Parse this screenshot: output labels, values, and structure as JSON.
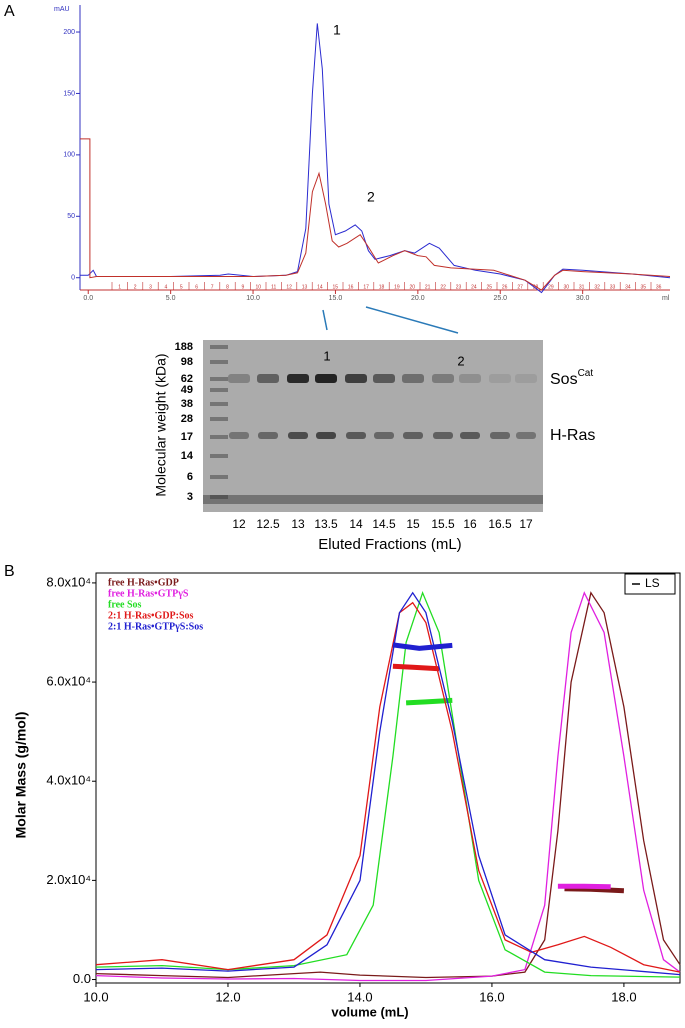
{
  "chart_data": [
    {
      "type": "line",
      "panel": "A",
      "ylabel": "mAU",
      "xunit": "ml",
      "xlim": [
        -0.5,
        35.3
      ],
      "ylim": [
        -10,
        222
      ],
      "xticks": [
        {
          "value": 0,
          "label": "0.0"
        },
        {
          "value": 5,
          "label": "5.0"
        },
        {
          "value": 10,
          "label": "10.0"
        },
        {
          "value": 15,
          "label": "15.0"
        },
        {
          "value": 20,
          "label": "20.0"
        },
        {
          "value": 25,
          "label": "25.0"
        },
        {
          "value": 30,
          "label": "30.0"
        }
      ],
      "yticks": [
        0,
        50,
        100,
        150,
        200
      ],
      "peak_labels": [
        "1",
        "2"
      ],
      "fraction_labels": [
        1,
        2,
        3,
        4,
        5,
        6,
        7,
        8,
        9,
        10,
        11,
        12,
        13,
        14,
        15,
        16,
        17,
        18,
        19,
        20,
        21,
        22,
        23,
        24,
        25,
        26,
        27,
        28,
        29,
        30,
        31,
        32,
        33,
        34,
        35,
        36
      ],
      "series": [
        {
          "color": "#2b2bd0",
          "x": [
            -0.5,
            0,
            0.3,
            0.5,
            5,
            8,
            8.5,
            10,
            12,
            12.7,
            13.2,
            13.6,
            13.9,
            14.2,
            14.6,
            15.0,
            15.6,
            16.2,
            16.6,
            17.0,
            17.4,
            18.3,
            19.2,
            19.8,
            20.7,
            21.3,
            22.2,
            23.5,
            25,
            26.5,
            27.5,
            28.3,
            28.8,
            30,
            33,
            35.3
          ],
          "values": [
            2,
            2,
            6,
            1,
            1,
            2,
            3,
            1,
            2,
            5,
            40,
            150,
            207,
            170,
            60,
            35,
            38,
            43,
            38,
            22,
            15,
            18,
            22,
            20,
            28,
            24,
            10,
            6,
            3,
            -2,
            -12,
            2,
            7,
            6,
            3,
            0
          ]
        },
        {
          "color": "#c0302a",
          "x": [
            -0.5,
            0.1,
            0.1,
            0.5,
            5,
            10,
            12,
            12.7,
            13.2,
            13.6,
            14.0,
            14.4,
            14.8,
            15.2,
            15.7,
            16.5,
            17.0,
            17.6,
            18.5,
            19.2,
            20.0,
            20.5,
            21.0,
            22,
            24.6,
            26.5,
            27.5,
            28.3,
            28.8,
            30,
            33,
            35.3
          ],
          "values": [
            113,
            113,
            0,
            1,
            1,
            1,
            2,
            4,
            20,
            70,
            85,
            60,
            30,
            25,
            28,
            35,
            25,
            12,
            18,
            22,
            18,
            17,
            10,
            8,
            6,
            -2,
            -10,
            2,
            6,
            5,
            3,
            1
          ]
        }
      ]
    },
    {
      "type": "gel",
      "ylabel": "Molecular weight (kDa)",
      "xlabel": "Eluted Fractions (mL)",
      "mw_markers": [
        188,
        98,
        62,
        49,
        38,
        28,
        17,
        14,
        6,
        3
      ],
      "categories": [
        "12",
        "12.5",
        "13",
        "13.5",
        "14",
        "14.5",
        "15",
        "15.5",
        "16",
        "16.5",
        "17"
      ],
      "peak_labels": [
        "1",
        "2"
      ],
      "band_labels": [
        {
          "name": "Sos",
          "sup": "Cat"
        },
        {
          "name": "H-Ras"
        }
      ]
    },
    {
      "type": "line",
      "panel": "B",
      "ylabel": "Molar Mass (g/mol)",
      "xlabel": "volume (mL)",
      "xlim": [
        10,
        18.85
      ],
      "ylim": [
        -700,
        82000
      ],
      "xticks": [
        {
          "value": 10,
          "label": "10.0"
        },
        {
          "value": 12,
          "label": "12.0"
        },
        {
          "value": 14,
          "label": "14.0"
        },
        {
          "value": 16,
          "label": "16.0"
        },
        {
          "value": 18,
          "label": "18.0"
        }
      ],
      "yticks": [
        {
          "value": 0,
          "label": "0.0"
        },
        {
          "value": 20000,
          "label": "2.0x10⁴"
        },
        {
          "value": 40000,
          "label": "4.0x10⁴"
        },
        {
          "value": 60000,
          "label": "6.0x10⁴"
        },
        {
          "value": 80000,
          "label": "8.0x10⁴"
        }
      ],
      "legend_box": "LS",
      "series": [
        {
          "name": "free H-Ras•GDP",
          "color": "#7a1a1a",
          "x": [
            10,
            11,
            12,
            13,
            13.4,
            14,
            15,
            16,
            16.5,
            16.8,
            17.0,
            17.2,
            17.5,
            17.7,
            18.0,
            18.3,
            18.6,
            18.85
          ],
          "values": [
            1200,
            800,
            400,
            1200,
            1500,
            900,
            400,
            700,
            1500,
            8000,
            30000,
            60000,
            78000,
            74000,
            55000,
            28000,
            8000,
            3000
          ],
          "mass_x": [
            17.1,
            17.5,
            18.0
          ],
          "mass_values": [
            18300,
            18200,
            17900
          ]
        },
        {
          "name": "free H-Ras•GTPγS",
          "color": "#e020e0",
          "x": [
            10,
            11,
            12,
            13,
            14,
            15,
            16,
            16.5,
            16.8,
            17.0,
            17.2,
            17.4,
            17.7,
            18.0,
            18.3,
            18.6,
            18.85
          ],
          "values": [
            800,
            300,
            100,
            200,
            -200,
            -200,
            700,
            2000,
            15000,
            45000,
            70000,
            78000,
            70000,
            45000,
            18000,
            4000,
            1500
          ],
          "mass_x": [
            17.0,
            17.4,
            17.8
          ],
          "mass_values": [
            18800,
            18800,
            18700
          ]
        },
        {
          "name": "free Sos",
          "color": "#22dd22",
          "x": [
            10,
            11,
            12,
            13,
            13.8,
            14.2,
            14.5,
            14.7,
            14.95,
            15.2,
            15.5,
            15.8,
            16.2,
            16.8,
            17.5,
            18.85
          ],
          "values": [
            2500,
            2800,
            2000,
            2800,
            5000,
            15000,
            45000,
            68000,
            78000,
            70000,
            45000,
            20000,
            6000,
            1500,
            800,
            500
          ],
          "mass_x": [
            14.7,
            15.0,
            15.4
          ],
          "mass_values": [
            55800,
            56000,
            56300
          ]
        },
        {
          "name": "2:1 H-Ras•GDP:Sos",
          "color": "#e01818",
          "x": [
            10,
            11,
            12,
            13,
            13.5,
            14,
            14.3,
            14.6,
            14.8,
            15.0,
            15.4,
            15.8,
            16.2,
            16.6,
            17.0,
            17.4,
            17.8,
            18.3,
            18.85
          ],
          "values": [
            3000,
            4000,
            2000,
            4000,
            9000,
            25000,
            55000,
            74000,
            76000,
            72000,
            50000,
            22000,
            8000,
            5500,
            7000,
            8700,
            6500,
            3000,
            1500
          ],
          "mass_x": [
            14.5,
            14.8,
            15.2
          ],
          "mass_values": [
            63200,
            63000,
            62700
          ]
        },
        {
          "name": "2:1 H-Ras•GTPγS:Sos",
          "color": "#2020d0",
          "x": [
            10,
            11,
            12,
            13,
            13.5,
            14,
            14.3,
            14.6,
            14.8,
            15.0,
            15.4,
            15.8,
            16.2,
            16.8,
            17.5,
            18.85
          ],
          "values": [
            2000,
            2300,
            1700,
            2500,
            7000,
            20000,
            50000,
            74000,
            78000,
            74000,
            52000,
            25000,
            9000,
            4000,
            2500,
            1000
          ],
          "mass_x": [
            14.5,
            14.9,
            15.4
          ],
          "mass_values": [
            67500,
            66800,
            67400
          ]
        }
      ]
    }
  ]
}
